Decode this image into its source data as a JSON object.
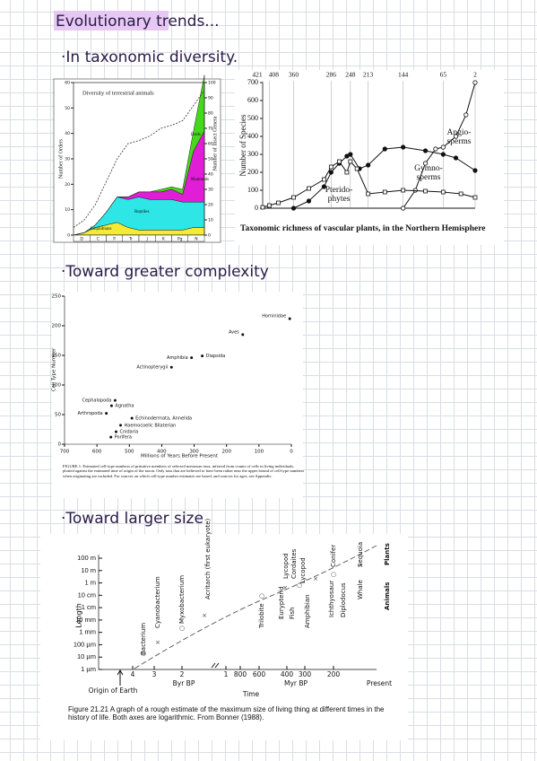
{
  "title": "Evolutionary trends...",
  "headings": [
    "·In taxonomic diversity.",
    "·Toward greater complexity",
    "·Toward larger size"
  ],
  "animals": {
    "title": "Diversity of terrestrial animals",
    "ylabel": "Number of Orders",
    "y2label": "Number of Insect Genera",
    "ylim": [
      0,
      60
    ],
    "yticks": [
      0,
      10,
      20,
      30,
      40,
      50,
      60
    ],
    "y2lim": [
      0,
      100
    ],
    "y2ticks": [
      0,
      10,
      20,
      30,
      40,
      50,
      60,
      70,
      80,
      90,
      100
    ],
    "periods": [
      "D",
      "C",
      "P",
      "Tr",
      "J",
      "K",
      "Pg",
      "N"
    ],
    "series": [
      {
        "name": "Amphibians",
        "color": "#f4ec34",
        "values": [
          0,
          1,
          3,
          4,
          5,
          3,
          2,
          2,
          2,
          2,
          2,
          3,
          3
        ]
      },
      {
        "name": "Reptiles",
        "color": "#2ee6e6",
        "values": [
          0,
          0,
          1,
          5,
          10,
          11,
          13,
          12,
          12,
          12,
          11,
          10,
          10
        ]
      },
      {
        "name": "Mammals",
        "color": "#e01ed6",
        "values": [
          0,
          0,
          0,
          0,
          0,
          1,
          2,
          3,
          3,
          4,
          3,
          20,
          28
        ]
      },
      {
        "name": "Birds",
        "color": "#46d81c",
        "values": [
          0,
          0,
          0,
          0,
          0,
          0,
          0,
          0,
          1,
          1,
          2,
          8,
          22
        ]
      }
    ],
    "insects": {
      "axis": "y2",
      "values": [
        5,
        10,
        20,
        35,
        50,
        60,
        62,
        65,
        70,
        72,
        75,
        85,
        95
      ]
    }
  },
  "plants": {
    "ylabel": "Number of Species",
    "caption": "Taxonomic richness of vascular plants, in the Northern Hemisphere",
    "xlim": [
      421,
      2
    ],
    "xticks": [
      421,
      408,
      360,
      286,
      248,
      213,
      144,
      65,
      2
    ],
    "ylim": [
      0,
      700
    ],
    "yticks": [
      0,
      100,
      200,
      300,
      400,
      500,
      600,
      700
    ],
    "series": [
      {
        "label": [
          "Angio-",
          "sperms"
        ],
        "marker": "circle-open",
        "x": [
          144,
          120,
          100,
          80,
          65,
          40,
          20,
          2
        ],
        "values": [
          0,
          100,
          250,
          330,
          340,
          400,
          520,
          700
        ]
      },
      {
        "label": [
          "Gymno-",
          "sperms"
        ],
        "marker": "circle-filled",
        "x": [
          360,
          330,
          300,
          286,
          270,
          255,
          248,
          230,
          213,
          180,
          144,
          100,
          65,
          40,
          2
        ],
        "values": [
          0,
          40,
          120,
          200,
          250,
          290,
          300,
          220,
          240,
          330,
          340,
          320,
          300,
          280,
          210
        ]
      },
      {
        "label": [
          "Pterido-",
          "phytes"
        ],
        "marker": "square-open",
        "x": [
          421,
          408,
          390,
          360,
          330,
          300,
          286,
          270,
          255,
          248,
          235,
          213,
          180,
          144,
          100,
          65,
          30,
          2
        ],
        "values": [
          5,
          15,
          30,
          60,
          110,
          160,
          230,
          260,
          200,
          260,
          220,
          80,
          90,
          100,
          95,
          90,
          80,
          60
        ]
      }
    ]
  },
  "complexity": {
    "ylabel": "Cell Type Number",
    "xlabel": "Millions of Years Before Present",
    "xlim": [
      700,
      0
    ],
    "xticks": [
      700,
      600,
      500,
      400,
      300,
      200,
      100,
      0
    ],
    "ylim": [
      0,
      250
    ],
    "yticks": [
      0,
      50,
      100,
      150,
      200,
      250
    ],
    "points": [
      {
        "label": "Hominidae",
        "x": 5,
        "y": 212
      },
      {
        "label": "Aves",
        "x": 150,
        "y": 185
      },
      {
        "label": "Diapsida",
        "x": 275,
        "y": 149
      },
      {
        "label": "Amphibia",
        "x": 308,
        "y": 146
      },
      {
        "label": "Actinopterygii",
        "x": 370,
        "y": 130
      },
      {
        "label": "Cephalopoda",
        "x": 544,
        "y": 74
      },
      {
        "label": "Agnatha",
        "x": 555,
        "y": 65
      },
      {
        "label": "Arthropoda",
        "x": 571,
        "y": 52
      },
      {
        "label": "Echinodermata, Annelida",
        "x": 492,
        "y": 44
      },
      {
        "label": "Haemocoelic Bilaterian",
        "x": 527,
        "y": 32
      },
      {
        "label": "Cnidaria",
        "x": 541,
        "y": 21
      },
      {
        "label": "Porifera",
        "x": 557,
        "y": 12
      }
    ],
    "caption": "FIGURE 1. Estimated cell-type numbers of primitive members of selected metazoan taxa, inferred from counts of cells in living individuals, plotted against the estimated time of origin of the taxon. Only taxa that are believed to have been rather near the upper bound of cell-type numbers when originating are included. For sources on which cell-type number estimates are based, and sources for ages, see Appendix."
  },
  "size": {
    "ylabel": "Length",
    "yticks": [
      "100 m",
      "10 m",
      "1 m",
      "10 cm",
      "1 cm",
      "10 mm",
      "1 mm",
      "100 µm",
      "10 µm",
      "1 µm"
    ],
    "xticks": [
      "4",
      "3",
      "2",
      "1",
      "800",
      "600",
      "400",
      "300",
      "200"
    ],
    "xlabel": "Time",
    "byr": "Byr BP",
    "myr": "Myr BP",
    "present": "Present",
    "origin": "Origin of Earth",
    "organisms": [
      "Bacterium",
      "Cyanobacterium",
      "Myxobacterium",
      "Acritarch (first eukaryote)",
      "Trilobite",
      "Eurypterid",
      "Fish",
      "Lycopod",
      "Cordaites",
      "Lycopod",
      "Amphibian",
      "Ichthyosaur",
      "Conifer",
      "Diplodocus",
      "Whale",
      "Sequoia"
    ],
    "groups": [
      "Plants",
      "Animals"
    ],
    "caption": "Figure 21.21 A graph of a rough estimate of the maximum size of living thing at different times in the history of life. Both axes are logarithmic. From Bonner (1988)."
  }
}
